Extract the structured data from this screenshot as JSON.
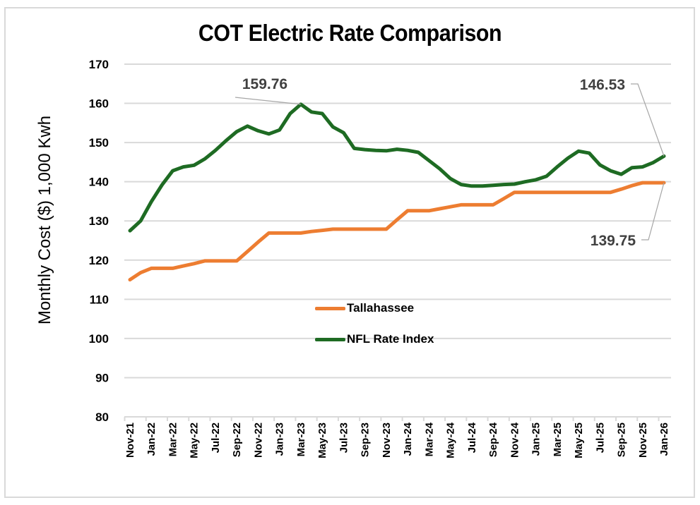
{
  "chart_data": {
    "type": "line",
    "title": "COT Electric Rate Comparison",
    "xlabel": "",
    "ylabel": "Monthly Cost ($) 1,000 Kwh",
    "ylim": [
      80,
      170
    ],
    "yticks": [
      "80",
      "90",
      "100",
      "110",
      "120",
      "130",
      "140",
      "150",
      "160",
      "170"
    ],
    "grid": true,
    "legend_position": "center",
    "x": [
      "Nov-21",
      "Dec-21",
      "Jan-22",
      "Feb-22",
      "Mar-22",
      "Apr-22",
      "May-22",
      "Jun-22",
      "Jul-22",
      "Aug-22",
      "Sep-22",
      "Oct-22",
      "Nov-22",
      "Dec-22",
      "Jan-23",
      "Feb-23",
      "Mar-23",
      "Apr-23",
      "May-23",
      "Jun-23",
      "Jul-23",
      "Aug-23",
      "Sep-23",
      "Oct-23",
      "Nov-23",
      "Dec-23",
      "Jan-24",
      "Feb-24",
      "Mar-24",
      "Apr-24",
      "May-24",
      "Jun-24",
      "Jul-24",
      "Aug-24",
      "Sep-24",
      "Oct-24",
      "Nov-24",
      "Dec-24",
      "Jan-25",
      "Feb-25",
      "Mar-25",
      "Apr-25",
      "May-25",
      "Jun-25",
      "Jul-25",
      "Aug-25",
      "Sep-25",
      "Oct-25",
      "Nov-25",
      "Dec-25",
      "Jan-26"
    ],
    "xtick_labels": [
      "Nov-21",
      "Jan-22",
      "Mar-22",
      "May-22",
      "Jul-22",
      "Sep-22",
      "Nov-22",
      "Jan-23",
      "Mar-23",
      "May-23",
      "Jul-23",
      "Sep-23",
      "Nov-23",
      "Jan-24",
      "Mar-24",
      "May-24",
      "Jul-24",
      "Sep-24",
      "Nov-24",
      "Jan-25",
      "Mar-25",
      "May-25",
      "Jul-25",
      "Sep-25",
      "Nov-25",
      "Jan-26"
    ],
    "series": [
      {
        "name": "Tallahassee",
        "color": "#ed7d31",
        "values": [
          115.0,
          116.8,
          117.9,
          117.9,
          117.9,
          118.5,
          119.1,
          119.8,
          119.8,
          119.8,
          119.8,
          122.2,
          124.6,
          126.9,
          126.9,
          126.9,
          126.9,
          127.3,
          127.6,
          127.9,
          127.9,
          127.9,
          127.9,
          127.9,
          127.9,
          130.3,
          132.6,
          132.6,
          132.6,
          133.1,
          133.6,
          134.1,
          134.1,
          134.1,
          134.1,
          135.7,
          137.3,
          137.3,
          137.3,
          137.3,
          137.3,
          137.3,
          137.3,
          137.3,
          137.3,
          137.3,
          138.1,
          139.0,
          139.75,
          139.75,
          139.75
        ]
      },
      {
        "name": "NFL Rate Index",
        "color": "#1e6b23",
        "values": [
          127.5,
          130.0,
          134.9,
          139.2,
          142.8,
          143.8,
          144.2,
          145.8,
          148.0,
          150.5,
          152.8,
          154.2,
          153.0,
          152.2,
          153.2,
          157.4,
          159.76,
          157.8,
          157.4,
          154.0,
          152.5,
          148.5,
          148.2,
          148.0,
          147.9,
          148.3,
          148.0,
          147.5,
          145.4,
          143.3,
          140.8,
          139.3,
          138.9,
          138.9,
          139.1,
          139.3,
          139.4,
          140.0,
          140.5,
          141.4,
          143.8,
          146.0,
          147.8,
          147.3,
          144.3,
          142.8,
          141.9,
          143.6,
          143.8,
          144.9,
          146.53
        ]
      }
    ],
    "annotations": [
      {
        "series": "NFL Rate Index",
        "x": "Mar-23",
        "text": "159.76"
      },
      {
        "series": "NFL Rate Index",
        "x": "Jan-26",
        "text": "146.53"
      },
      {
        "series": "Tallahassee",
        "x": "Jan-26",
        "text": "139.75"
      }
    ]
  }
}
